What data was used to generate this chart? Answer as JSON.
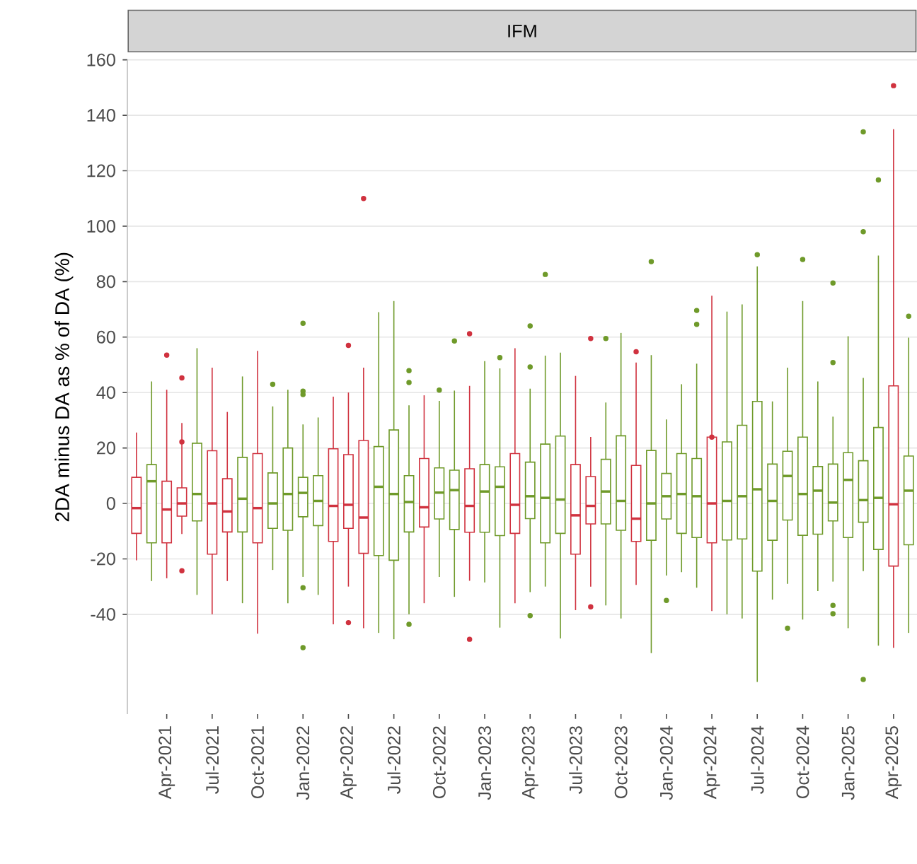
{
  "chart_data": {
    "type": "box",
    "title": "IFM",
    "ylabel": "2DA minus DA as % of DA (%)",
    "categories": [
      null,
      null,
      "Apr-2021",
      null,
      null,
      "Jul-2021",
      null,
      null,
      "Oct-2021",
      null,
      null,
      "Jan-2022",
      null,
      null,
      "Apr-2022",
      null,
      null,
      "Jul-2022",
      null,
      null,
      "Oct-2022",
      null,
      null,
      "Jan-2023",
      null,
      null,
      "Apr-2023",
      null,
      null,
      "Jul-2023",
      null,
      null,
      "Oct-2023",
      null,
      null,
      "Jan-2024",
      null,
      null,
      "Apr-2024",
      null,
      null,
      "Jul-2024",
      null,
      null,
      "Oct-2024",
      null,
      null,
      "Jan-2025",
      null,
      null,
      "Apr-2025",
      null
    ],
    "boxes": [
      {
        "low": -20.5,
        "q1": -10.8,
        "median": -1.7,
        "q3": 9.4,
        "high": 25.6
      },
      {
        "low": -28,
        "q1": -14.2,
        "median": 8,
        "q3": 14,
        "high": 44
      },
      {
        "low": -27,
        "q1": -14.2,
        "median": -2.2,
        "q3": 8,
        "high": 41,
        "outliers": [
          53.5
        ]
      },
      {
        "low": -11,
        "q1": -4.6,
        "median": 0,
        "q3": 5.6,
        "high": 29,
        "outliers": [
          45.3,
          22.2,
          -24.3
        ]
      },
      {
        "low": -33,
        "q1": -6.3,
        "median": 3.4,
        "q3": 21.7,
        "high": 56
      },
      {
        "low": -40,
        "q1": -18.3,
        "median": 0,
        "q3": 19,
        "high": 49
      },
      {
        "low": -28,
        "q1": -10.3,
        "median": -2.9,
        "q3": 8.9,
        "high": 33
      },
      {
        "low": -36,
        "q1": -10.3,
        "median": 1.7,
        "q3": 16.6,
        "high": 45.8
      },
      {
        "low": -47,
        "q1": -14.2,
        "median": -1.7,
        "q3": 18,
        "high": 55
      },
      {
        "low": -24,
        "q1": -9,
        "median": 0,
        "q3": 11,
        "high": 35,
        "outliers": [
          43
        ]
      },
      {
        "low": -36,
        "q1": -9.7,
        "median": 3.4,
        "q3": 20,
        "high": 41
      },
      {
        "low": -26.5,
        "q1": -4.8,
        "median": 3.8,
        "q3": 9.4,
        "high": 28.5,
        "outliers": [
          65,
          40.5,
          39.3,
          -30.4,
          -52
        ]
      },
      {
        "low": -33,
        "q1": -8,
        "median": 0.9,
        "q3": 10,
        "high": 31
      },
      {
        "low": -43.6,
        "q1": -13.7,
        "median": -0.9,
        "q3": 19.7,
        "high": 38.5
      },
      {
        "low": -30,
        "q1": -9,
        "median": -0.5,
        "q3": 17.6,
        "high": 40,
        "outliers": [
          57,
          -43
        ]
      },
      {
        "low": -45,
        "q1": -18,
        "median": -5.1,
        "q3": 22.7,
        "high": 49,
        "outliers": [
          110
        ]
      },
      {
        "low": -46.7,
        "q1": -18.8,
        "median": 6,
        "q3": 20.5,
        "high": 69
      },
      {
        "low": -49,
        "q1": -20.5,
        "median": 3.4,
        "q3": 26.5,
        "high": 73
      },
      {
        "low": -40,
        "q1": -10.3,
        "median": 0.5,
        "q3": 10,
        "high": 35.4,
        "outliers": [
          47.9,
          43.6,
          -43.6
        ]
      },
      {
        "low": -36,
        "q1": -8.5,
        "median": -1.4,
        "q3": 16.2,
        "high": 39
      },
      {
        "low": -26.5,
        "q1": -5.6,
        "median": 3.9,
        "q3": 12.8,
        "high": 37,
        "outliers": [
          40.9
        ]
      },
      {
        "low": -33.7,
        "q1": -9.4,
        "median": 4.8,
        "q3": 12,
        "high": 40.7,
        "outliers": [
          58.6
        ]
      },
      {
        "low": -27.9,
        "q1": -10.4,
        "median": -0.9,
        "q3": 12.5,
        "high": 42.4,
        "outliers": [
          61.2,
          -49
        ]
      },
      {
        "low": -28.5,
        "q1": -10.4,
        "median": 4.3,
        "q3": 14,
        "high": 51.3
      },
      {
        "low": -44.8,
        "q1": -11.6,
        "median": 6,
        "q3": 13.2,
        "high": 48.7,
        "outliers": [
          52.6
        ]
      },
      {
        "low": -36,
        "q1": -10.8,
        "median": -0.5,
        "q3": 18,
        "high": 56
      },
      {
        "low": -32,
        "q1": -5.5,
        "median": 2.6,
        "q3": 14.9,
        "high": 41.4,
        "outliers": [
          64,
          49.2,
          -40.5
        ]
      },
      {
        "low": -30,
        "q1": -14.2,
        "median": 2,
        "q3": 21.4,
        "high": 53.3,
        "outliers": [
          82.6
        ]
      },
      {
        "low": -48.7,
        "q1": -10.8,
        "median": 1.4,
        "q3": 24.3,
        "high": 54.4
      },
      {
        "low": -38.5,
        "q1": -18.3,
        "median": -4.3,
        "q3": 14,
        "high": 46
      },
      {
        "low": -30,
        "q1": -7.4,
        "median": -0.9,
        "q3": 9.7,
        "high": 24,
        "outliers": [
          59.5,
          -37.3
        ]
      },
      {
        "low": -36.8,
        "q1": -7.4,
        "median": 4.3,
        "q3": 15.9,
        "high": 36.4,
        "outliers": [
          59.5
        ]
      },
      {
        "low": -41.5,
        "q1": -9.7,
        "median": 0.9,
        "q3": 24.4,
        "high": 61.5
      },
      {
        "low": -29.4,
        "q1": -13.7,
        "median": -5.5,
        "q3": 13.7,
        "high": 50.8,
        "outliers": [
          54.7
        ]
      },
      {
        "low": -54,
        "q1": -13.3,
        "median": 0,
        "q3": 19.1,
        "high": 53.5,
        "outliers": [
          87.2
        ]
      },
      {
        "low": -26,
        "q1": -5.6,
        "median": 2.6,
        "q3": 10.8,
        "high": 30.3,
        "outliers": [
          -35
        ]
      },
      {
        "low": -24.8,
        "q1": -10.8,
        "median": 3.4,
        "q3": 18,
        "high": 43
      },
      {
        "low": -30.4,
        "q1": -12.3,
        "median": 2.6,
        "q3": 16.2,
        "high": 50.4,
        "outliers": [
          69.6,
          64.6
        ]
      },
      {
        "low": -38.8,
        "q1": -14.2,
        "median": 0,
        "q3": 23.9,
        "high": 74.9,
        "outliers": [
          23.9
        ]
      },
      {
        "low": -40,
        "q1": -13.2,
        "median": 0.9,
        "q3": 22.2,
        "high": 69.2
      },
      {
        "low": -41.5,
        "q1": -12.8,
        "median": 2.6,
        "q3": 28.2,
        "high": 71.8
      },
      {
        "low": -64.4,
        "q1": -24.4,
        "median": 5.1,
        "q3": 36.8,
        "high": 85.5,
        "outliers": [
          89.7
        ]
      },
      {
        "low": -34.7,
        "q1": -13.3,
        "median": 0.9,
        "q3": 14.2,
        "high": 36.8
      },
      {
        "low": -29,
        "q1": -6,
        "median": 9.9,
        "q3": 18.8,
        "high": 49,
        "outliers": [
          -45
        ]
      },
      {
        "low": -41.9,
        "q1": -11.5,
        "median": 3.4,
        "q3": 23.9,
        "high": 73,
        "outliers": [
          88
        ]
      },
      {
        "low": -31.6,
        "q1": -11.1,
        "median": 4.6,
        "q3": 13.3,
        "high": 44
      },
      {
        "low": -28.2,
        "q1": -6.3,
        "median": 0.3,
        "q3": 14.2,
        "high": 31.3,
        "outliers": [
          79.5,
          50.8,
          -36.8,
          -39.8
        ]
      },
      {
        "low": -45,
        "q1": -12.3,
        "median": 8.5,
        "q3": 18.3,
        "high": 60.3
      },
      {
        "low": -24.4,
        "q1": -6.8,
        "median": 1.2,
        "q3": 15.4,
        "high": 45.3,
        "outliers": [
          134,
          98,
          -63.5
        ]
      },
      {
        "low": -51.3,
        "q1": -16.6,
        "median": 2,
        "q3": 27.4,
        "high": 89.4,
        "outliers": [
          116.7
        ]
      },
      {
        "low": -52.1,
        "q1": -22.6,
        "median": -0.3,
        "q3": 42.4,
        "high": 135,
        "outliers": [
          150.7
        ]
      },
      {
        "low": -46.7,
        "q1": -14.9,
        "median": 4.6,
        "q3": 17.1,
        "high": 59.8,
        "outliers": [
          67.5
        ]
      }
    ],
    "colors": [
      "#d0323f",
      "#6f9a2a",
      "#d0323f",
      "#d0323f",
      "#6f9a2a",
      "#d0323f",
      "#d0323f",
      "#6f9a2a",
      "#d0323f",
      "#6f9a2a",
      "#6f9a2a",
      "#6f9a2a",
      "#6f9a2a",
      "#d0323f",
      "#d0323f",
      "#d0323f",
      "#6f9a2a",
      "#6f9a2a",
      "#6f9a2a",
      "#d0323f",
      "#6f9a2a",
      "#6f9a2a",
      "#d0323f",
      "#6f9a2a",
      "#6f9a2a",
      "#d0323f",
      "#6f9a2a",
      "#6f9a2a",
      "#6f9a2a",
      "#d0323f",
      "#d0323f",
      "#6f9a2a",
      "#6f9a2a",
      "#d0323f",
      "#6f9a2a",
      "#6f9a2a",
      "#6f9a2a",
      "#6f9a2a",
      "#d0323f",
      "#6f9a2a",
      "#6f9a2a",
      "#6f9a2a",
      "#6f9a2a",
      "#6f9a2a",
      "#6f9a2a",
      "#6f9a2a",
      "#6f9a2a",
      "#6f9a2a",
      "#6f9a2a",
      "#6f9a2a",
      "#d0323f",
      "#6f9a2a"
    ],
    "ylim": [
      -76,
      160
    ],
    "yticks": [
      -40,
      -20,
      0,
      20,
      40,
      60,
      80,
      100,
      120,
      140,
      160
    ],
    "grid": "y"
  }
}
